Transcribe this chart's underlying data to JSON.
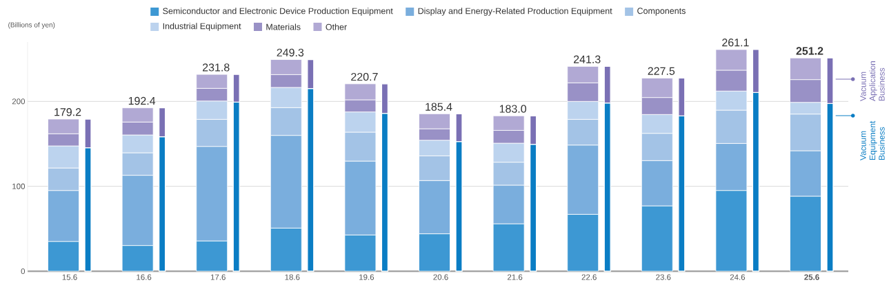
{
  "chart_data": {
    "type": "bar",
    "ylabel": "(Billions of yen)",
    "categories": [
      "15.6",
      "16.6",
      "17.6",
      "18.6",
      "19.6",
      "20.6",
      "21.6",
      "22.6",
      "23.6",
      "24.6",
      "**25.6**"
    ],
    "series": [
      {
        "name": "Semiconductor and Electronic Device Production Equipment",
        "color": "#3d98d3",
        "base": [
          0,
          0,
          0,
          0,
          0,
          0,
          0,
          0,
          0,
          0,
          0
        ],
        "values": [
          35.1,
          30.3,
          35.7,
          50.8,
          42.7,
          44.1,
          55.9,
          67.0,
          77.0,
          95.1,
          88.4
        ]
      },
      {
        "name": "Display and Energy-Related Production Equipment",
        "color": "#7aaedd",
        "base": [
          35.1,
          30.3,
          35.7,
          50.8,
          42.7,
          44.1,
          55.9,
          67.0,
          77.0,
          95.1,
          88.4
        ],
        "values": [
          60.0,
          82.7,
          111.3,
          109.2,
          87.0,
          62.7,
          45.5,
          81.6,
          53.3,
          55.4,
          53.5
        ]
      },
      {
        "name": "Components",
        "color": "#a3c3e6",
        "base": [
          95.1,
          113.0,
          147.0,
          160.0,
          129.7,
          106.8,
          101.4,
          148.6,
          130.3,
          150.5,
          141.9
        ],
        "values": [
          26.5,
          26.5,
          31.9,
          32.7,
          34.1,
          29.1,
          27.0,
          30.3,
          32.1,
          39.2,
          43.2
        ]
      },
      {
        "name": "Industrial Equipment",
        "color": "#bcd3ee",
        "base": [
          121.6,
          139.5,
          178.9,
          192.7,
          163.8,
          135.9,
          128.4,
          178.9,
          162.4,
          189.7,
          185.1
        ],
        "values": [
          26.0,
          21.0,
          21.6,
          23.8,
          23.8,
          18.4,
          22.4,
          21.1,
          22.2,
          22.5,
          13.8
        ]
      },
      {
        "name": "Materials",
        "color": "#9991c6",
        "base": [
          147.6,
          160.5,
          200.5,
          216.5,
          187.6,
          154.3,
          150.8,
          200.0,
          184.6,
          212.2,
          198.9
        ],
        "values": [
          14.3,
          15.2,
          14.9,
          15.1,
          14.3,
          13.5,
          15.1,
          21.9,
          20.0,
          24.6,
          26.8
        ]
      },
      {
        "name": "Other",
        "color": "#b1a9d4",
        "base": [
          161.9,
          175.7,
          215.4,
          231.6,
          201.9,
          167.8,
          165.9,
          221.9,
          204.6,
          236.8,
          225.7
        ],
        "values": [
          17.3,
          16.7,
          16.4,
          17.7,
          18.8,
          17.6,
          17.1,
          19.4,
          22.9,
          24.3,
          25.5
        ]
      },
      {
        "name": "Vacuum Equipment Business",
        "color": "#0a7dc4",
        "base": [
          0,
          0,
          0,
          0,
          0,
          0,
          0,
          0,
          0,
          0,
          0
        ],
        "values": [
          145.4,
          158.4,
          199.2,
          215.1,
          185.9,
          152.7,
          149.5,
          198.1,
          183.0,
          210.5,
          197.6
        ]
      },
      {
        "name": "Vacuum Application Business",
        "color": "#7a70b4",
        "base": [
          145.4,
          158.4,
          199.2,
          215.1,
          185.9,
          152.7,
          149.5,
          198.1,
          183.0,
          210.5,
          197.6
        ],
        "values": [
          33.8,
          34.0,
          32.6,
          34.2,
          34.8,
          32.7,
          33.5,
          43.2,
          44.5,
          50.6,
          53.6
        ]
      }
    ],
    "annotations": [
      "179.2",
      "192.4",
      "231.8",
      "249.3",
      "220.7",
      "185.4",
      "183.0",
      "241.3",
      "227.5",
      "261.1",
      "**251.2**"
    ],
    "ylim": [
      0,
      270
    ],
    "yticks": [
      0,
      100,
      200
    ],
    "grid": "y",
    "legend": "top"
  }
}
